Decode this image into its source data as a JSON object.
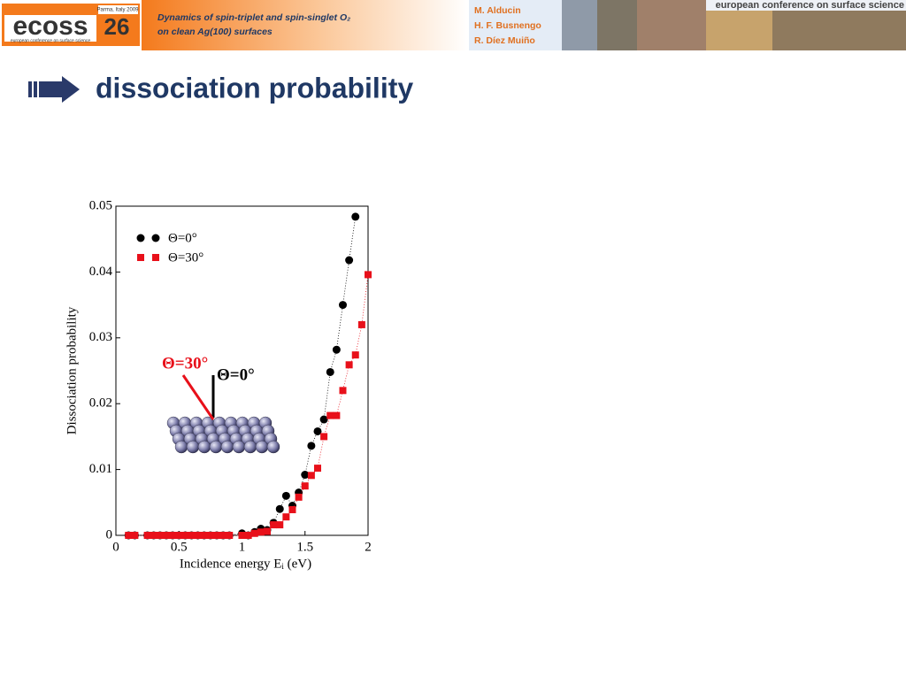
{
  "header": {
    "logo": "ecoss",
    "logo_number": "26",
    "logo_place": "Parma, Italy 2009",
    "logo_caption": "european conference on surface science",
    "talk_title": [
      "Dynamics of spin-triplet and spin-singlet O₂",
      "on clean Ag(100) surfaces"
    ],
    "authors": [
      "M. Alducin",
      "H. F. Busnengo",
      "R. Díez Muiño"
    ],
    "banner": "european conference on surface science"
  },
  "slide_title": "dissociation probability",
  "chart_data": {
    "type": "scatter",
    "xlabel": "Incidence energy Eᵢ (eV)",
    "ylabel": "Dissociation probability",
    "xlim": [
      0,
      2
    ],
    "ylim": [
      0,
      0.05
    ],
    "xticks": [
      0,
      0.5,
      1,
      1.5,
      2
    ],
    "yticks": [
      0,
      0.01,
      0.02,
      0.03,
      0.04,
      0.05
    ],
    "annotations": [
      "Θ=30°",
      "Θ=0°"
    ],
    "series": [
      {
        "name": "Θ=0°",
        "color": "#000000",
        "marker": "circle",
        "x": [
          0.1,
          0.15,
          0.25,
          0.3,
          0.35,
          0.4,
          0.45,
          0.5,
          0.55,
          0.6,
          0.65,
          0.7,
          0.75,
          0.8,
          0.85,
          0.9,
          1.0,
          1.05,
          1.1,
          1.15,
          1.2,
          1.25,
          1.3,
          1.35,
          1.4,
          1.45,
          1.5,
          1.55,
          1.6,
          1.65,
          1.7,
          1.75,
          1.8,
          1.85,
          1.9
        ],
        "values": [
          0,
          0,
          0,
          0,
          0,
          0,
          0,
          0,
          0,
          0,
          0,
          0,
          0,
          0,
          0,
          0,
          0.0003,
          0,
          0.0005,
          0.001,
          0.0008,
          0.0019,
          0.004,
          0.006,
          0.0045,
          0.0065,
          0.0092,
          0.0136,
          0.0158,
          0.0176,
          0.0248,
          0.0282,
          0.035,
          0.0418,
          0.0484
        ]
      },
      {
        "name": "Θ=30°",
        "color": "#e8101a",
        "marker": "square",
        "x": [
          0.1,
          0.15,
          0.25,
          0.3,
          0.35,
          0.4,
          0.45,
          0.5,
          0.55,
          0.6,
          0.65,
          0.7,
          0.75,
          0.8,
          0.85,
          0.9,
          1.0,
          1.05,
          1.1,
          1.15,
          1.2,
          1.25,
          1.3,
          1.35,
          1.4,
          1.45,
          1.5,
          1.55,
          1.6,
          1.65,
          1.7,
          1.75,
          1.8,
          1.85,
          1.9,
          1.95,
          2.0
        ],
        "values": [
          0,
          0,
          0,
          0,
          0,
          0,
          0,
          0,
          0,
          0,
          0,
          0,
          0,
          0,
          0,
          0,
          0,
          0,
          0.0003,
          0.0005,
          0.0006,
          0.0016,
          0.0016,
          0.0028,
          0.0039,
          0.0058,
          0.0075,
          0.0091,
          0.0102,
          0.015,
          0.0182,
          0.0182,
          0.022,
          0.0259,
          0.0274,
          0.032,
          0.0396
        ]
      }
    ]
  }
}
